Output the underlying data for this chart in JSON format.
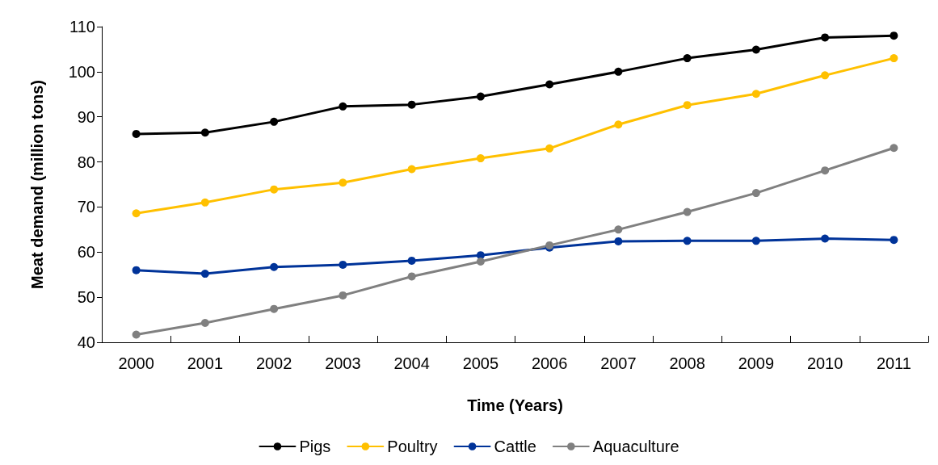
{
  "chart_data": {
    "type": "line",
    "xlabel": "Time (Years)",
    "ylabel": "Meat demand (million tons)",
    "categories": [
      "2000",
      "2001",
      "2002",
      "2003",
      "2004",
      "2005",
      "2006",
      "2007",
      "2008",
      "2009",
      "2010",
      "2011"
    ],
    "series": [
      {
        "name": "Pigs",
        "color": "#000000",
        "values": [
          86.2,
          86.5,
          88.9,
          92.3,
          92.7,
          94.5,
          97.2,
          100,
          103,
          104.9,
          107.6,
          108
        ]
      },
      {
        "name": "Poultry",
        "color": "#ffc000",
        "values": [
          68.6,
          71,
          73.9,
          75.4,
          78.4,
          80.8,
          83,
          88.3,
          92.6,
          95.1,
          99.2,
          103
        ]
      },
      {
        "name": "Cattle",
        "color": "#003399",
        "values": [
          56,
          55.2,
          56.7,
          57.2,
          58.1,
          59.3,
          61,
          62.4,
          62.5,
          62.5,
          63,
          62.7
        ]
      },
      {
        "name": "Aquaculture",
        "color": "#808080",
        "values": [
          41.7,
          44.3,
          47.4,
          50.4,
          54.6,
          57.9,
          61.5,
          65,
          68.9,
          73.1,
          78.1,
          83.1
        ]
      }
    ],
    "ylim": [
      40,
      110
    ],
    "yticks": [
      40,
      50,
      60,
      70,
      80,
      90,
      100,
      110
    ],
    "grid": false,
    "legend": "bottom",
    "marker": "circle",
    "line_style": "solid"
  }
}
